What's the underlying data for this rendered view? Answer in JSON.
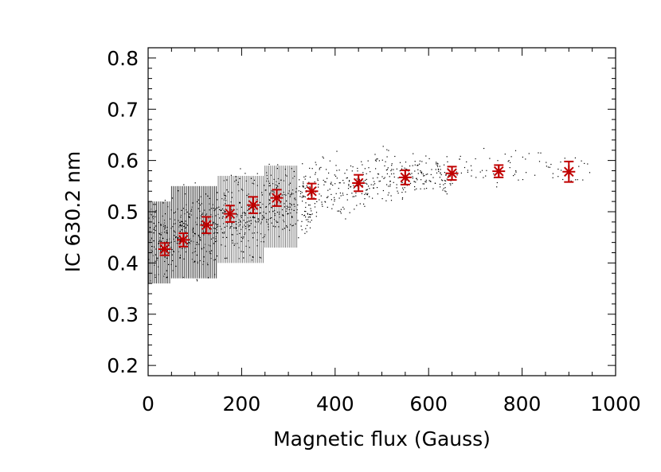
{
  "chart_data": {
    "type": "scatter",
    "title": "",
    "xlabel": "Magnetic flux (Gauss)",
    "ylabel": "IC 630.2 nm",
    "xlim": [
      0,
      1000
    ],
    "ylim": [
      0.18,
      0.82
    ],
    "x_ticks": [
      "0",
      "200",
      "400",
      "600",
      "800",
      "1000"
    ],
    "y_ticks": [
      "0.2",
      "0.3",
      "0.4",
      "0.5",
      "0.6",
      "0.7",
      "0.8"
    ],
    "grid": false,
    "legend": "none",
    "series": [
      {
        "kind": "scatter-cloud",
        "color": "#000000",
        "marker": "dot",
        "bands": [
          {
            "x_range": [
              0,
              50
            ],
            "y_range": [
              0.34,
              0.55
            ]
          },
          {
            "x_range": [
              50,
              150
            ],
            "y_range": [
              0.35,
              0.58
            ]
          },
          {
            "x_range": [
              150,
              250
            ],
            "y_range": [
              0.38,
              0.6
            ]
          },
          {
            "x_range": [
              250,
              350
            ],
            "y_range": [
              0.41,
              0.62
            ]
          },
          {
            "x_range": [
              350,
              450
            ],
            "y_range": [
              0.46,
              0.63
            ]
          },
          {
            "x_range": [
              450,
              550
            ],
            "y_range": [
              0.49,
              0.64
            ]
          },
          {
            "x_range": [
              550,
              650
            ],
            "y_range": [
              0.52,
              0.63
            ]
          },
          {
            "x_range": [
              650,
              950
            ],
            "y_range": [
              0.53,
              0.64
            ]
          }
        ]
      },
      {
        "kind": "mean-with-errorbars",
        "color": "#c00000",
        "marker": "asterisk",
        "points": [
          {
            "x": 35,
            "y": 0.427,
            "err": 0.012
          },
          {
            "x": 75,
            "y": 0.445,
            "err": 0.013
          },
          {
            "x": 125,
            "y": 0.474,
            "err": 0.016
          },
          {
            "x": 175,
            "y": 0.496,
            "err": 0.016
          },
          {
            "x": 225,
            "y": 0.513,
            "err": 0.016
          },
          {
            "x": 275,
            "y": 0.527,
            "err": 0.016
          },
          {
            "x": 350,
            "y": 0.54,
            "err": 0.015
          },
          {
            "x": 450,
            "y": 0.556,
            "err": 0.016
          },
          {
            "x": 550,
            "y": 0.567,
            "err": 0.014
          },
          {
            "x": 650,
            "y": 0.575,
            "err": 0.013
          },
          {
            "x": 750,
            "y": 0.579,
            "err": 0.012
          },
          {
            "x": 900,
            "y": 0.578,
            "err": 0.02
          }
        ]
      }
    ]
  }
}
